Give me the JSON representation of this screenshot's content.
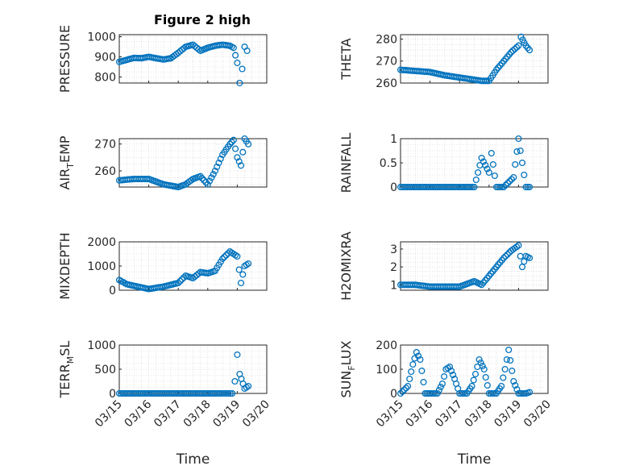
{
  "figure_title": "Figure 2 high",
  "chart_data": [
    {
      "type": "scatter",
      "title": "Figure 2 high",
      "ylabel": "PRESSURE",
      "ylabel_sub": "",
      "xlabel": "",
      "xlim": [
        "03/15",
        "03/20"
      ],
      "ylim": [
        770,
        1010
      ],
      "yticks": [
        800,
        900,
        1000
      ],
      "xtick_labels_shown": false,
      "x": [
        "03/15 00:00",
        "03/15 06:00",
        "03/15 12:00",
        "03/15 18:00",
        "03/16 00:00",
        "03/16 06:00",
        "03/16 12:00",
        "03/16 18:00",
        "03/17 00:00",
        "03/17 06:00",
        "03/17 12:00",
        "03/17 18:00",
        "03/18 00:00",
        "03/18 06:00",
        "03/18 12:00",
        "03/18 18:00",
        "03/18 21:00",
        "03/19 00:00",
        "03/19 02:00",
        "03/19 04:00",
        "03/19 06:00",
        "03/19 08:00"
      ],
      "y": [
        875,
        885,
        895,
        893,
        900,
        893,
        887,
        893,
        920,
        950,
        960,
        930,
        945,
        955,
        960,
        955,
        945,
        870,
        770,
        840,
        950,
        930
      ]
    },
    {
      "type": "scatter",
      "title": "",
      "ylabel": "THETA",
      "ylabel_sub": "",
      "xlabel": "",
      "xlim": [
        "03/15",
        "03/20"
      ],
      "ylim": [
        260,
        282
      ],
      "yticks": [
        260,
        270,
        280
      ],
      "xtick_labels_shown": false,
      "x": [
        "03/15 00:00",
        "03/15 12:00",
        "03/16 00:00",
        "03/16 12:00",
        "03/17 00:00",
        "03/17 12:00",
        "03/17 18:00",
        "03/18 00:00",
        "03/18 06:00",
        "03/18 12:00",
        "03/18 18:00",
        "03/19 00:00",
        "03/19 02:00",
        "03/19 06:00",
        "03/19 09:00"
      ],
      "y": [
        266,
        265.5,
        265,
        263.5,
        262.5,
        261.5,
        261,
        261,
        266,
        270,
        274,
        277,
        281,
        277,
        275
      ]
    },
    {
      "type": "scatter",
      "title": "",
      "ylabel": "AIR",
      "ylabel_sub": "T",
      "ylabel_tail": "EMP",
      "xlabel": "",
      "xlim": [
        "03/15",
        "03/20"
      ],
      "ylim": [
        254,
        272
      ],
      "yticks": [
        260,
        270
      ],
      "xtick_labels_shown": false,
      "x": [
        "03/15 00:00",
        "03/15 12:00",
        "03/16 00:00",
        "03/16 12:00",
        "03/17 00:00",
        "03/17 06:00",
        "03/17 12:00",
        "03/17 18:00",
        "03/18 00:00",
        "03/18 06:00",
        "03/18 12:00",
        "03/18 18:00",
        "03/18 21:00",
        "03/19 00:00",
        "03/19 03:00",
        "03/19 06:00",
        "03/19 09:00"
      ],
      "y": [
        256.5,
        257,
        257,
        255,
        254,
        255,
        257,
        258,
        255,
        260,
        266,
        270,
        271.5,
        265,
        262,
        272,
        270
      ]
    },
    {
      "type": "scatter",
      "title": "",
      "ylabel": "RAINFALL",
      "ylabel_sub": "",
      "xlabel": "",
      "xlim": [
        "03/15",
        "03/20"
      ],
      "ylim": [
        0,
        1
      ],
      "yticks": [
        0,
        0.5,
        1
      ],
      "xtick_labels_shown": false,
      "x": [
        "03/15 00:00",
        "03/15 12:00",
        "03/16 00:00",
        "03/16 12:00",
        "03/17 00:00",
        "03/17 12:00",
        "03/17 18:00",
        "03/18 00:00",
        "03/18 02:00",
        "03/18 06:00",
        "03/18 12:00",
        "03/18 20:00",
        "03/19 00:00",
        "03/19 06:00",
        "03/19 09:00"
      ],
      "y": [
        0,
        0,
        0,
        0,
        0,
        0,
        0.6,
        0.3,
        0.7,
        0,
        0,
        0.2,
        1,
        0,
        0
      ]
    },
    {
      "type": "scatter",
      "title": "",
      "ylabel": "MIXDEPTH",
      "ylabel_sub": "",
      "xlabel": "",
      "xlim": [
        "03/15",
        "03/20"
      ],
      "ylim": [
        0,
        2000
      ],
      "yticks": [
        0,
        1000,
        2000
      ],
      "xtick_labels_shown": false,
      "x": [
        "03/15 00:00",
        "03/15 06:00",
        "03/15 12:00",
        "03/16 00:00",
        "03/16 12:00",
        "03/17 00:00",
        "03/17 06:00",
        "03/17 12:00",
        "03/17 18:00",
        "03/18 00:00",
        "03/18 06:00",
        "03/18 12:00",
        "03/18 18:00",
        "03/19 00:00",
        "03/19 03:00",
        "03/19 06:00",
        "03/19 09:00"
      ],
      "y": [
        420,
        250,
        180,
        50,
        150,
        300,
        600,
        500,
        750,
        700,
        800,
        1300,
        1600,
        1400,
        300,
        1000,
        1100
      ]
    },
    {
      "type": "scatter",
      "title": "",
      "ylabel": "H2OMIXRA",
      "ylabel_sub": "",
      "xlabel": "",
      "xlim": [
        "03/15",
        "03/20"
      ],
      "ylim": [
        0.7,
        3.4
      ],
      "yticks": [
        1,
        2,
        3
      ],
      "xtick_labels_shown": false,
      "x": [
        "03/15 00:00",
        "03/15 12:00",
        "03/16 00:00",
        "03/16 12:00",
        "03/17 00:00",
        "03/17 12:00",
        "03/17 18:00",
        "03/18 00:00",
        "03/18 06:00",
        "03/18 12:00",
        "03/18 18:00",
        "03/19 00:00",
        "03/19 03:00",
        "03/19 06:00",
        "03/19 09:00"
      ],
      "y": [
        1,
        1,
        0.9,
        0.9,
        0.9,
        1.2,
        1,
        1.5,
        2,
        2.5,
        2.9,
        3.2,
        2,
        2.6,
        2.5
      ]
    },
    {
      "type": "scatter",
      "title": "",
      "ylabel": "TERR",
      "ylabel_sub": "M",
      "ylabel_tail": "SL",
      "xlabel": "Time",
      "xlim": [
        "03/15",
        "03/20"
      ],
      "ylim": [
        0,
        1000
      ],
      "yticks": [
        0,
        500,
        1000
      ],
      "xtick_labels_shown": true,
      "x": [
        "03/15 00:00",
        "03/15 12:00",
        "03/16 00:00",
        "03/16 12:00",
        "03/17 00:00",
        "03/17 12:00",
        "03/18 00:00",
        "03/18 12:00",
        "03/18 20:00",
        "03/18 22:00",
        "03/19 00:00",
        "03/19 02:00",
        "03/19 06:00",
        "03/19 09:00"
      ],
      "y": [
        0,
        0,
        0,
        0,
        0,
        0,
        0,
        0,
        0,
        250,
        800,
        400,
        100,
        150
      ]
    },
    {
      "type": "scatter",
      "title": "",
      "ylabel": "SUN",
      "ylabel_sub": "F",
      "ylabel_tail": "LUX",
      "xlabel": "Time",
      "xlim": [
        "03/15",
        "03/20"
      ],
      "ylim": [
        0,
        200
      ],
      "yticks": [
        0,
        100,
        200
      ],
      "xtick_labels_shown": true,
      "x": [
        "03/15 00:00",
        "03/15 06:00",
        "03/15 10:00",
        "03/15 13:00",
        "03/15 16:00",
        "03/15 20:00",
        "03/16 00:00",
        "03/16 06:00",
        "03/16 10:00",
        "03/16 13:00",
        "03/16 16:00",
        "03/16 20:00",
        "03/17 00:00",
        "03/17 06:00",
        "03/17 10:00",
        "03/17 13:00",
        "03/17 16:00",
        "03/17 20:00",
        "03/18 00:00",
        "03/18 06:00",
        "03/18 10:00",
        "03/18 13:00",
        "03/18 16:00",
        "03/18 20:00",
        "03/19 00:00",
        "03/19 06:00",
        "03/19 09:00"
      ],
      "y": [
        0,
        30,
        120,
        170,
        140,
        0,
        0,
        0,
        40,
        100,
        110,
        60,
        0,
        0,
        30,
        80,
        140,
        100,
        0,
        0,
        30,
        100,
        180,
        50,
        0,
        0,
        5
      ]
    }
  ],
  "xtick_labels": [
    "03/15",
    "03/16",
    "03/17",
    "03/18",
    "03/19",
    "03/20"
  ],
  "colors": {
    "series": "#0072bd",
    "axes": "#262626",
    "grid": "#d0d0d0"
  }
}
